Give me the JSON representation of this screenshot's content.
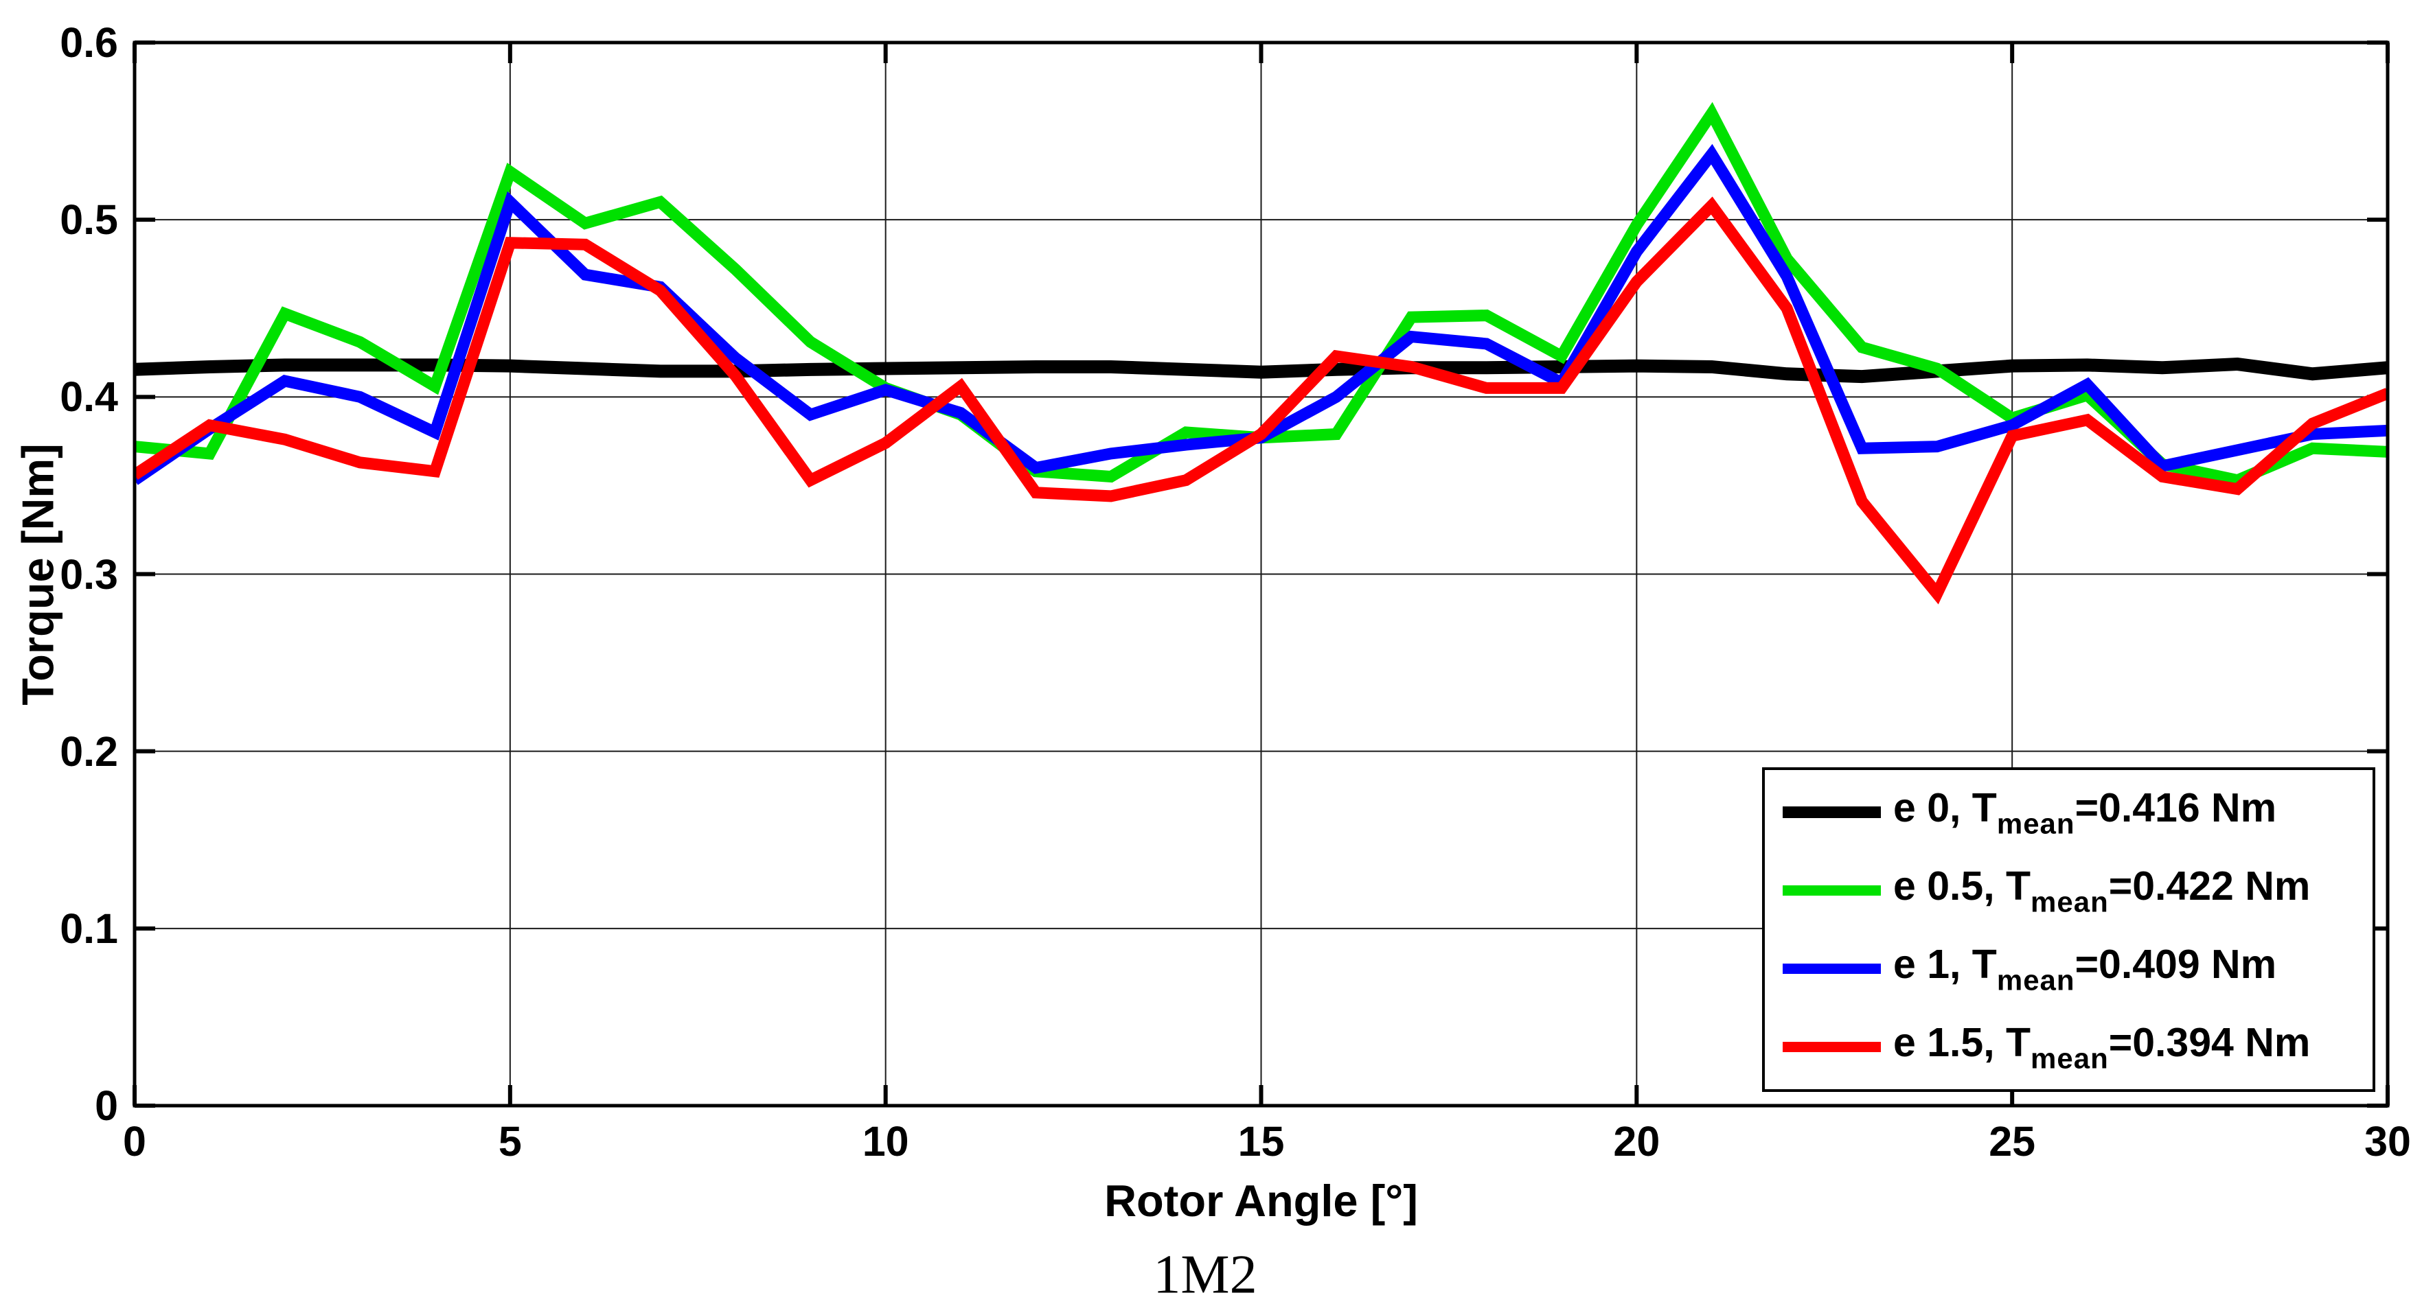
{
  "figure": {
    "caption": "1M2"
  },
  "chart_data": {
    "type": "line",
    "title": "",
    "xlabel": "Rotor Angle [°]",
    "ylabel": "Torque [Nm]",
    "xlim": [
      0,
      30
    ],
    "ylim": [
      0,
      0.6
    ],
    "grid": true,
    "legend_position": "inside lower right",
    "x_ticks": [
      0,
      5,
      10,
      15,
      20,
      25,
      30
    ],
    "x_tick_labels": [
      "0",
      "5",
      "10",
      "15",
      "20",
      "25",
      "30"
    ],
    "y_ticks": [
      0,
      0.1,
      0.2,
      0.3,
      0.4,
      0.5,
      0.6
    ],
    "y_tick_labels": [
      "0",
      "0.1",
      "0.2",
      "0.3",
      "0.4",
      "0.5",
      "0.6"
    ],
    "x": [
      0,
      1,
      2,
      3,
      4,
      5,
      6,
      7,
      8,
      9,
      10,
      11,
      12,
      13,
      14,
      15,
      16,
      17,
      18,
      19,
      20,
      21,
      22,
      23,
      24,
      25,
      26,
      27,
      28,
      29,
      30
    ],
    "series": [
      {
        "name": "e 0",
        "t_mean_nm": 0.416,
        "color": "#000000",
        "line_width": 19,
        "values": [
          0.4155,
          0.417,
          0.418,
          0.418,
          0.418,
          0.4175,
          0.416,
          0.4145,
          0.4145,
          0.4155,
          0.416,
          0.4165,
          0.417,
          0.417,
          0.4155,
          0.414,
          0.4155,
          0.4165,
          0.4165,
          0.417,
          0.4175,
          0.417,
          0.413,
          0.4115,
          0.4145,
          0.4175,
          0.418,
          0.4165,
          0.4185,
          0.413,
          0.4165
        ]
      },
      {
        "name": "e 0.5",
        "t_mean_nm": 0.422,
        "color": "#00e100",
        "line_width": 17,
        "values": [
          0.372,
          0.368,
          0.447,
          0.431,
          0.406,
          0.527,
          0.498,
          0.51,
          0.472,
          0.431,
          0.405,
          0.39,
          0.358,
          0.355,
          0.38,
          0.377,
          0.379,
          0.445,
          0.446,
          0.423,
          0.497,
          0.56,
          0.478,
          0.428,
          0.416,
          0.388,
          0.401,
          0.362,
          0.353,
          0.371,
          0.369
        ]
      },
      {
        "name": "e 1",
        "t_mean_nm": 0.409,
        "color": "#0000ff",
        "line_width": 17,
        "values": [
          0.353,
          0.382,
          0.409,
          0.4,
          0.38,
          0.51,
          0.469,
          0.462,
          0.422,
          0.39,
          0.404,
          0.391,
          0.36,
          0.368,
          0.373,
          0.377,
          0.4,
          0.434,
          0.43,
          0.408,
          0.482,
          0.537,
          0.468,
          0.371,
          0.372,
          0.384,
          0.407,
          0.361,
          0.37,
          0.379,
          0.381
        ]
      },
      {
        "name": "e 1.5",
        "t_mean_nm": 0.394,
        "color": "#ff0000",
        "line_width": 17,
        "values": [
          0.356,
          0.384,
          0.376,
          0.363,
          0.358,
          0.487,
          0.486,
          0.46,
          0.412,
          0.353,
          0.374,
          0.406,
          0.346,
          0.344,
          0.353,
          0.379,
          0.423,
          0.417,
          0.405,
          0.405,
          0.465,
          0.508,
          0.45,
          0.341,
          0.289,
          0.378,
          0.387,
          0.355,
          0.348,
          0.385,
          0.402
        ]
      }
    ],
    "legend_entries": [
      {
        "prefix": "e 0, T",
        "sub": "mean",
        "suffix": "=0.416 Nm",
        "color": "#000000"
      },
      {
        "prefix": "e 0.5, T",
        "sub": "mean",
        "suffix": "=0.422 Nm",
        "color": "#00e100"
      },
      {
        "prefix": "e 1, T",
        "sub": "mean",
        "suffix": "=0.409 Nm",
        "color": "#0000ff"
      },
      {
        "prefix": "e 1.5, T",
        "sub": "mean",
        "suffix": "=0.394 Nm",
        "color": "#ff0000"
      }
    ]
  }
}
